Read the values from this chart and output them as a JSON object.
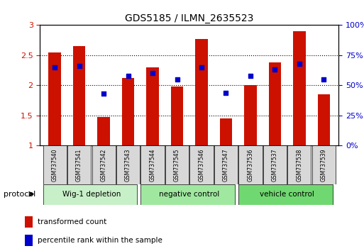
{
  "title": "GDS5185 / ILMN_2635523",
  "samples": [
    "GSM737540",
    "GSM737541",
    "GSM737542",
    "GSM737543",
    "GSM737544",
    "GSM737545",
    "GSM737546",
    "GSM737547",
    "GSM737536",
    "GSM737537",
    "GSM737538",
    "GSM737539"
  ],
  "transformed_count": [
    2.55,
    2.65,
    1.48,
    2.12,
    2.3,
    1.98,
    2.77,
    1.45,
    2.0,
    2.38,
    2.9,
    1.85
  ],
  "percentile_rank": [
    65,
    66,
    43,
    58,
    60,
    55,
    65,
    44,
    58,
    63,
    68,
    55
  ],
  "bar_color": "#cc1100",
  "marker_color": "#0000cc",
  "ylim_left": [
    1,
    3
  ],
  "ylim_right": [
    0,
    100
  ],
  "yticks_left": [
    1.0,
    1.5,
    2.0,
    2.5,
    3.0
  ],
  "yticks_right": [
    0,
    25,
    50,
    75,
    100
  ],
  "ytick_labels_left": [
    "1",
    "1.5",
    "2",
    "2.5",
    "3"
  ],
  "ytick_labels_right": [
    "0%",
    "25%",
    "50%",
    "75%",
    "100%"
  ],
  "grid_lines": [
    1.5,
    2.0,
    2.5
  ],
  "groups": [
    {
      "label": "Wig-1 depletion",
      "start": 0,
      "end": 4,
      "color": "#c8f0c8"
    },
    {
      "label": "negative control",
      "start": 4,
      "end": 8,
      "color": "#a0e8a0"
    },
    {
      "label": "vehicle control",
      "start": 8,
      "end": 12,
      "color": "#70d870"
    }
  ],
  "protocol_label": "protocol",
  "legend_bar_label": "transformed count",
  "legend_marker_label": "percentile rank within the sample",
  "background_color": "#ffffff",
  "plot_bg_color": "#ffffff",
  "tick_label_color_left": "#cc1100",
  "tick_label_color_right": "#0000cc",
  "sample_box_color": "#d8d8d8"
}
